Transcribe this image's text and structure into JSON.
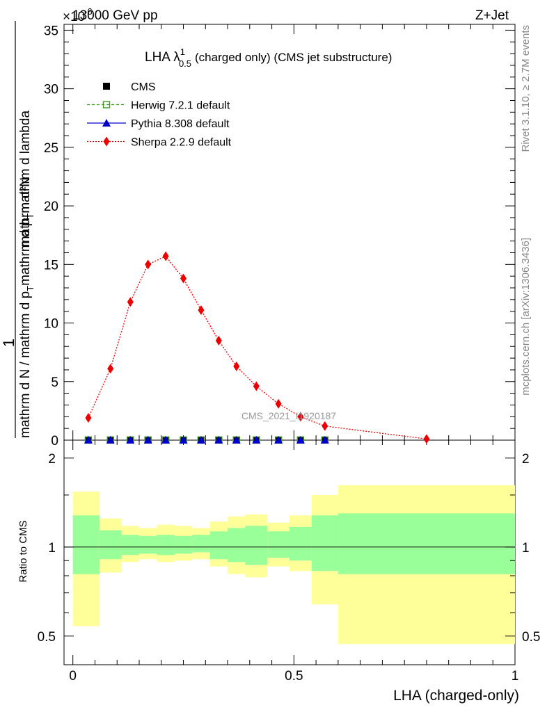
{
  "header": {
    "left_title": "13000 GeV pp",
    "right_title": "Z+Jet",
    "exponent_label": "×10",
    "exponent_value": "-6"
  },
  "side_notes": {
    "rivet": "Rivet 3.1.10, ≥ 2.7M events",
    "mcplots": "mcplots.cern.ch [arXiv:1306.3436]"
  },
  "watermark": "CMS_2021_I1920187",
  "chart_data": [
    {
      "type": "scatter",
      "title": "LHA λ¹₀.₅ (charged only) (CMS jet substructure)",
      "title_main": "LHA λ",
      "title_sup": "1",
      "title_sub": "0.5",
      "title_rest": "(charged only) (CMS jet substructure)",
      "ylabel_numerator": "1",
      "ylabel_denominator": "mathrm d N / mathrm d p_T mathrm d p_T mathrm d lambda",
      "ylabel_top": "mathrm d²N",
      "ylabel_bottom_line1": "mathrm d N / mathrm d p",
      "ylabel_bottom_line2": "mathrm d p",
      "ylabel_bottom_line3": "mathrm d lambda",
      "ylim": [
        0,
        35.5
      ],
      "yticks": [
        0,
        5,
        10,
        15,
        20,
        25,
        30,
        35
      ],
      "xlim": [
        -0.02,
        1.0
      ],
      "x_bins": [
        0.035,
        0.085,
        0.13,
        0.17,
        0.21,
        0.25,
        0.29,
        0.33,
        0.37,
        0.415,
        0.465,
        0.515,
        0.57,
        0.8
      ],
      "series": [
        {
          "name": "CMS",
          "marker": "square",
          "color": "#000000",
          "x": [
            0.035,
            0.085,
            0.13,
            0.17,
            0.21,
            0.25,
            0.29,
            0.33,
            0.37,
            0.415,
            0.465,
            0.515,
            0.57
          ],
          "values": [
            0.01,
            0.01,
            0.01,
            0.01,
            0.01,
            0.01,
            0.01,
            0.01,
            0.01,
            0.01,
            0.01,
            0.01,
            0.01
          ]
        },
        {
          "name": "Herwig 7.2.1 default",
          "marker": "open-square",
          "color": "#3a9b1f",
          "x": [
            0.035,
            0.085,
            0.13,
            0.17,
            0.21,
            0.25,
            0.29,
            0.33,
            0.37,
            0.415,
            0.465,
            0.515,
            0.57
          ],
          "values": [
            0.01,
            0.01,
            0.01,
            0.01,
            0.01,
            0.01,
            0.01,
            0.01,
            0.01,
            0.01,
            0.01,
            0.01,
            0.01
          ]
        },
        {
          "name": "Pythia 8.308 default",
          "marker": "triangle",
          "color": "#0000cc",
          "x": [
            0.035,
            0.085,
            0.13,
            0.17,
            0.21,
            0.25,
            0.29,
            0.33,
            0.37,
            0.415,
            0.465,
            0.515,
            0.57
          ],
          "values": [
            0.01,
            0.01,
            0.01,
            0.01,
            0.01,
            0.01,
            0.01,
            0.01,
            0.01,
            0.01,
            0.01,
            0.01,
            0.01
          ]
        },
        {
          "name": "Sherpa 2.2.9 default",
          "marker": "diamond",
          "color": "#ee0000",
          "x": [
            0.035,
            0.085,
            0.13,
            0.17,
            0.21,
            0.25,
            0.29,
            0.33,
            0.37,
            0.415,
            0.465,
            0.515,
            0.57,
            0.8
          ],
          "values": [
            1.9,
            6.1,
            11.8,
            15.0,
            15.7,
            13.8,
            11.1,
            8.5,
            6.3,
            4.6,
            3.1,
            2.0,
            1.2,
            0.1
          ]
        }
      ],
      "legend_position": "top-left"
    },
    {
      "type": "area",
      "ylabel": "Ratio to CMS",
      "xlabel": "LHA (charged-only)",
      "ylim": [
        0.4,
        2.3
      ],
      "log_scale_y": true,
      "yticks": [
        0.5,
        1,
        2
      ],
      "xticks": [
        0,
        0.5,
        1
      ],
      "xlim": [
        -0.02,
        1.0
      ],
      "bin_edges": [
        0.0,
        0.06,
        0.11,
        0.15,
        0.19,
        0.23,
        0.27,
        0.31,
        0.35,
        0.39,
        0.44,
        0.49,
        0.54,
        0.6,
        1.0
      ],
      "band_stat": {
        "color": "#99ff99",
        "lower": [
          0.81,
          0.91,
          0.94,
          0.95,
          0.94,
          0.95,
          0.96,
          0.91,
          0.89,
          0.87,
          0.92,
          0.9,
          0.83,
          0.81
        ],
        "upper": [
          1.28,
          1.14,
          1.1,
          1.09,
          1.1,
          1.09,
          1.1,
          1.13,
          1.16,
          1.18,
          1.13,
          1.17,
          1.28,
          1.3
        ]
      },
      "band_total": {
        "color": "#ffff99",
        "lower": [
          0.54,
          0.82,
          0.89,
          0.91,
          0.89,
          0.9,
          0.91,
          0.86,
          0.81,
          0.79,
          0.86,
          0.83,
          0.64,
          0.47
        ],
        "upper": [
          1.54,
          1.25,
          1.18,
          1.16,
          1.19,
          1.18,
          1.16,
          1.22,
          1.27,
          1.29,
          1.21,
          1.28,
          1.5,
          1.62
        ]
      },
      "reference_line": 1
    }
  ]
}
